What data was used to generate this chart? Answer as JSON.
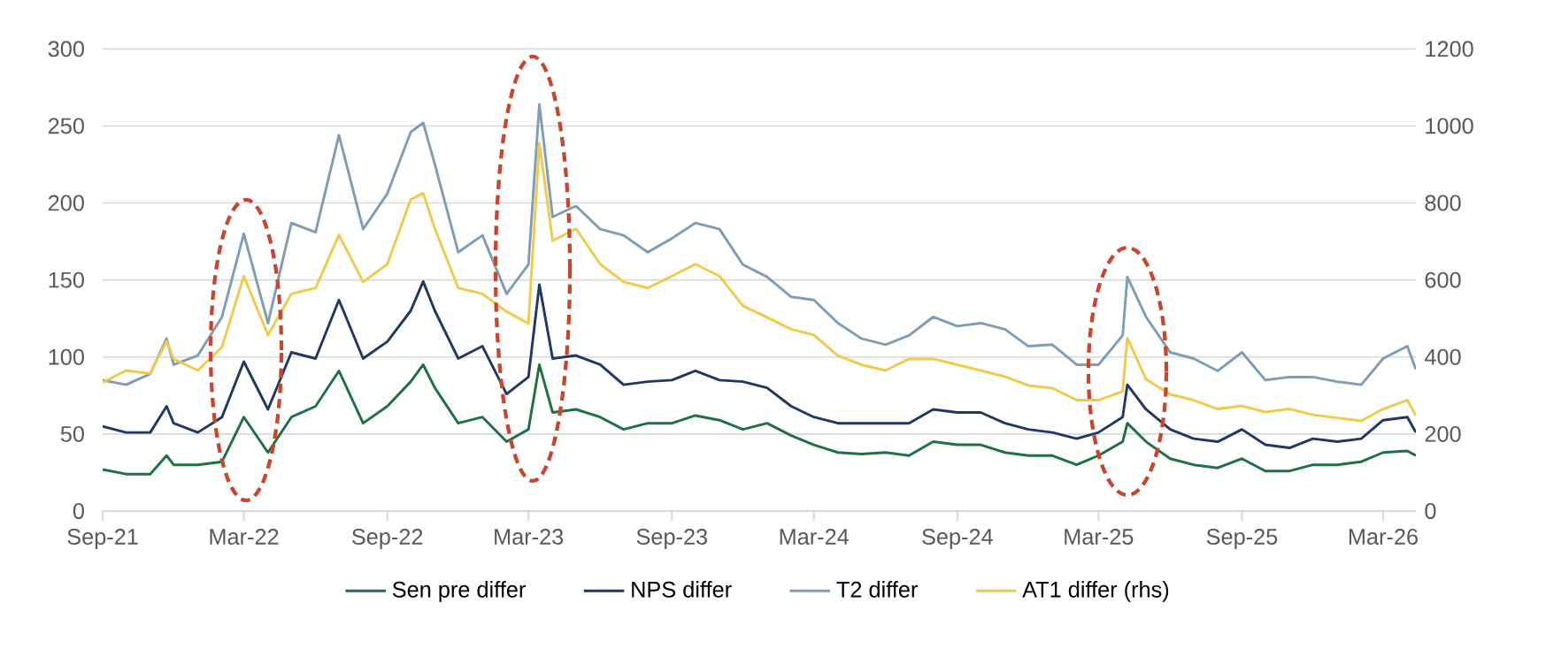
{
  "chart_data": {
    "type": "line",
    "x": [
      "2021-09-01",
      "2021-10-01",
      "2021-11-01",
      "2021-11-22",
      "2021-12-01",
      "2022-01-01",
      "2022-02-01",
      "2022-03-01",
      "2022-04-01",
      "2022-05-01",
      "2022-06-01",
      "2022-07-01",
      "2022-08-01",
      "2022-09-01",
      "2022-10-01",
      "2022-10-17",
      "2022-11-01",
      "2022-12-01",
      "2023-01-01",
      "2023-02-01",
      "2023-03-01",
      "2023-03-15",
      "2023-04-01",
      "2023-05-01",
      "2023-06-01",
      "2023-07-01",
      "2023-08-01",
      "2023-09-01",
      "2023-10-01",
      "2023-11-01",
      "2023-12-01",
      "2024-01-01",
      "2024-02-01",
      "2024-03-01",
      "2024-04-01",
      "2024-05-01",
      "2024-06-01",
      "2024-07-01",
      "2024-08-01",
      "2024-09-01",
      "2024-10-01",
      "2024-11-01",
      "2024-12-01",
      "2025-01-01",
      "2025-02-01",
      "2025-03-01",
      "2025-04-01",
      "2025-04-07",
      "2025-05-01",
      "2025-06-01",
      "2025-07-01",
      "2025-08-01",
      "2025-09-01",
      "2025-10-01",
      "2025-11-01",
      "2025-12-01",
      "2026-01-01",
      "2026-02-01",
      "2026-03-01",
      "2026-04-01",
      "2026-04-12"
    ],
    "series": [
      {
        "name": "Sen pre differ",
        "color": "#1e7145",
        "values": [
          27,
          24,
          24,
          36,
          30,
          30,
          32,
          61,
          38,
          61,
          68,
          91,
          57,
          68,
          84,
          95,
          80,
          57,
          61,
          45,
          53,
          95,
          64,
          66,
          61,
          53,
          57,
          57,
          62,
          59,
          53,
          57,
          49,
          43,
          38,
          37,
          38,
          36,
          45,
          43,
          43,
          38,
          36,
          36,
          30,
          36,
          45,
          57,
          45,
          34,
          30,
          28,
          34,
          26,
          26,
          30,
          30,
          32,
          38,
          39,
          36
        ]
      },
      {
        "name": "NPS differ",
        "color": "#1f3864",
        "values": [
          55,
          51,
          51,
          68,
          57,
          51,
          61,
          97,
          66,
          103,
          99,
          137,
          99,
          110,
          130,
          149,
          130,
          99,
          107,
          76,
          87,
          147,
          99,
          101,
          95,
          82,
          84,
          85,
          91,
          85,
          84,
          80,
          68,
          61,
          57,
          57,
          57,
          57,
          66,
          64,
          64,
          57,
          53,
          51,
          47,
          51,
          61,
          82,
          66,
          53,
          47,
          45,
          53,
          43,
          41,
          47,
          45,
          47,
          59,
          61,
          51
        ]
      },
      {
        "name": "T2 differ",
        "color": "#7f9db5",
        "values": [
          85,
          82,
          89,
          112,
          95,
          101,
          126,
          180,
          122,
          187,
          181,
          244,
          183,
          206,
          246,
          252,
          225,
          168,
          179,
          141,
          160,
          264,
          191,
          198,
          183,
          179,
          168,
          177,
          187,
          183,
          160,
          152,
          139,
          137,
          122,
          112,
          108,
          114,
          126,
          120,
          122,
          118,
          107,
          108,
          95,
          95,
          114,
          152,
          126,
          103,
          99,
          91,
          103,
          85,
          87,
          87,
          84,
          82,
          99,
          107,
          92
        ]
      },
      {
        "name": "AT1 differ (rhs)",
        "color": "#eecb4a",
        "axis": "y2",
        "values": [
          334,
          365,
          357,
          441,
          395,
          365,
          426,
          610,
          457,
          564,
          579,
          717,
          595,
          641,
          809,
          825,
          733,
          579,
          564,
          518,
          487,
          955,
          702,
          733,
          641,
          595,
          579,
          610,
          641,
          610,
          533,
          503,
          472,
          457,
          403,
          380,
          365,
          395,
          395,
          380,
          365,
          349,
          326,
          319,
          288,
          288,
          311,
          449,
          342,
          303,
          288,
          265,
          273,
          257,
          265,
          250,
          242,
          234,
          265,
          288,
          248
        ]
      }
    ],
    "xlim": [
      "2021-09-01",
      "2026-04-12"
    ],
    "xticks": [
      {
        "value": "2021-09-01",
        "label": "Sep-21"
      },
      {
        "value": "2022-03-01",
        "label": "Mar-22"
      },
      {
        "value": "2022-09-01",
        "label": "Sep-22"
      },
      {
        "value": "2023-03-01",
        "label": "Mar-23"
      },
      {
        "value": "2023-09-01",
        "label": "Sep-23"
      },
      {
        "value": "2024-03-01",
        "label": "Mar-24"
      },
      {
        "value": "2024-09-01",
        "label": "Sep-24"
      },
      {
        "value": "2025-03-01",
        "label": "Mar-25"
      },
      {
        "value": "2025-09-01",
        "label": "Sep-25"
      },
      {
        "value": "2026-03-01",
        "label": "Mar-26"
      }
    ],
    "ylim": [
      0,
      300
    ],
    "yticks": [
      0,
      50,
      100,
      150,
      200,
      250,
      300
    ],
    "y2lim": [
      0,
      1200
    ],
    "y2ticks": [
      0,
      200,
      400,
      600,
      800,
      1000,
      1200
    ],
    "grid": "y",
    "legend": "bottom"
  }
}
